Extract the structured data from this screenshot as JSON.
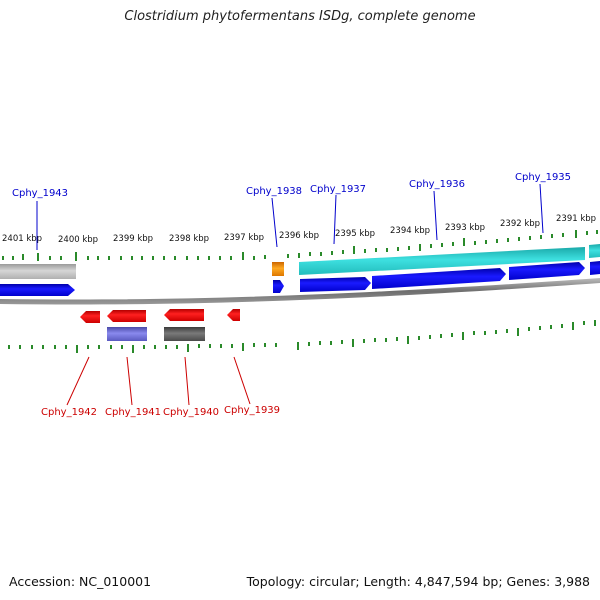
{
  "title": "Clostridium phytofermentans ISDg, complete genome",
  "footer": {
    "accession": "Accession: NC_010001",
    "summary": "Topology: circular; Length: 4,847,594 bp; Genes: 3,988"
  },
  "colors": {
    "forward_cds": "#0000ee",
    "reverse_cds": "#ee0000",
    "forward_label": "#0000cc",
    "reverse_label": "#cc0000",
    "tick": "#2a8a2a",
    "backbone": "#808080",
    "teal_feature": "#1fc8c8",
    "grey_feature": "#b8b8b8",
    "orange_feature": "#ee8800",
    "purple_feature": "#6666cc",
    "dark_feature": "#555555"
  },
  "scale_labels": [
    "2401 kbp",
    "2400 kbp",
    "2399 kbp",
    "2398 kbp",
    "2397 kbp",
    "2396 kbp",
    "2395 kbp",
    "2394 kbp",
    "2393 kbp",
    "2392 kbp",
    "2391 kbp"
  ],
  "forward_genes": [
    "Cphy_1943",
    "Cphy_1938",
    "Cphy_1937",
    "Cphy_1936",
    "Cphy_1935"
  ],
  "reverse_genes": [
    "Cphy_1942",
    "Cphy_1941",
    "Cphy_1940",
    "Cphy_1939"
  ]
}
